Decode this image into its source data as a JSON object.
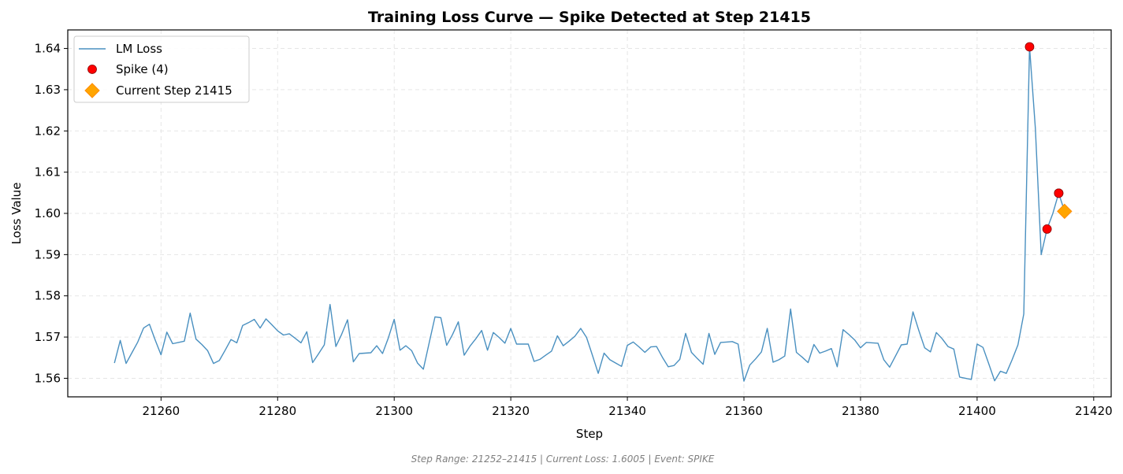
{
  "chart_data": {
    "type": "line",
    "title": "Training Loss Curve — Spike Detected at Step 21415",
    "xlabel": "Step",
    "ylabel": "Loss Value",
    "xlim": [
      21244,
      21423
    ],
    "ylim": [
      1.5555,
      1.6445
    ],
    "x_ticks": [
      21260,
      21280,
      21300,
      21320,
      21340,
      21360,
      21380,
      21400,
      21420
    ],
    "y_ticks": [
      1.56,
      1.57,
      1.58,
      1.59,
      1.6,
      1.61,
      1.62,
      1.63,
      1.64
    ],
    "x_tick_labels": [
      "21260",
      "21280",
      "21300",
      "21320",
      "21340",
      "21360",
      "21380",
      "21400",
      "21420"
    ],
    "y_tick_labels": [
      "1.56",
      "1.57",
      "1.58",
      "1.59",
      "1.60",
      "1.61",
      "1.62",
      "1.63",
      "1.64"
    ],
    "grid": true,
    "legend_position": "top-left",
    "series": [
      {
        "name": "LM Loss",
        "color": "#4a90c0",
        "x": [
          21252,
          21253,
          21254,
          21255,
          21256,
          21257,
          21258,
          21259,
          21260,
          21261,
          21262,
          21263,
          21264,
          21265,
          21266,
          21267,
          21268,
          21269,
          21270,
          21271,
          21272,
          21273,
          21274,
          21275,
          21276,
          21277,
          21278,
          21279,
          21280,
          21281,
          21282,
          21283,
          21284,
          21285,
          21286,
          21287,
          21288,
          21289,
          21290,
          21291,
          21292,
          21293,
          21294,
          21295,
          21296,
          21297,
          21298,
          21299,
          21300,
          21301,
          21302,
          21303,
          21304,
          21305,
          21306,
          21307,
          21308,
          21309,
          21310,
          21311,
          21312,
          21313,
          21314,
          21315,
          21316,
          21317,
          21318,
          21319,
          21320,
          21321,
          21322,
          21323,
          21324,
          21325,
          21326,
          21327,
          21328,
          21329,
          21330,
          21331,
          21332,
          21333,
          21334,
          21335,
          21336,
          21337,
          21338,
          21339,
          21340,
          21341,
          21342,
          21343,
          21344,
          21345,
          21346,
          21347,
          21348,
          21349,
          21350,
          21351,
          21352,
          21353,
          21354,
          21355,
          21356,
          21357,
          21358,
          21359,
          21360,
          21361,
          21362,
          21363,
          21364,
          21365,
          21366,
          21367,
          21368,
          21369,
          21370,
          21371,
          21372,
          21373,
          21374,
          21375,
          21376,
          21377,
          21378,
          21379,
          21380,
          21381,
          21382,
          21383,
          21384,
          21385,
          21386,
          21387,
          21388,
          21389,
          21390,
          21391,
          21392,
          21393,
          21394,
          21395,
          21396,
          21397,
          21398,
          21399,
          21400,
          21401,
          21402,
          21403,
          21404,
          21405,
          21406,
          21407,
          21408,
          21409,
          21410,
          21411,
          21412,
          21413,
          21414,
          21415
        ],
        "y": [
          1.5637,
          1.5692,
          1.5636,
          1.5662,
          1.5688,
          1.5722,
          1.5731,
          1.5693,
          1.5657,
          1.5712,
          1.5684,
          1.5687,
          1.569,
          1.5758,
          1.5695,
          1.5682,
          1.5667,
          1.5636,
          1.5643,
          1.5668,
          1.5694,
          1.5686,
          1.5728,
          1.5735,
          1.5743,
          1.5722,
          1.5744,
          1.573,
          1.5715,
          1.5705,
          1.5708,
          1.5697,
          1.5686,
          1.5713,
          1.5638,
          1.5659,
          1.5681,
          1.5779,
          1.5677,
          1.5707,
          1.5742,
          1.564,
          1.566,
          1.5661,
          1.5662,
          1.5679,
          1.566,
          1.5698,
          1.5743,
          1.5668,
          1.5679,
          1.5667,
          1.5637,
          1.5622,
          1.5686,
          1.5749,
          1.5747,
          1.568,
          1.5706,
          1.5737,
          1.5656,
          1.5678,
          1.5696,
          1.5716,
          1.5668,
          1.5711,
          1.5699,
          1.5685,
          1.5721,
          1.5683,
          1.5683,
          1.5683,
          1.5641,
          1.5646,
          1.5656,
          1.5666,
          1.5703,
          1.5679,
          1.569,
          1.5702,
          1.5721,
          1.5699,
          1.5656,
          1.5612,
          1.5661,
          1.5645,
          1.5637,
          1.5629,
          1.568,
          1.5688,
          1.5676,
          1.5663,
          1.5676,
          1.5677,
          1.5651,
          1.5628,
          1.5631,
          1.5646,
          1.5709,
          1.5663,
          1.5648,
          1.5634,
          1.5709,
          1.5658,
          1.5687,
          1.5688,
          1.5689,
          1.5683,
          1.5593,
          1.5632,
          1.5647,
          1.5664,
          1.5721,
          1.5639,
          1.5645,
          1.5654,
          1.5768,
          1.5663,
          1.5651,
          1.5638,
          1.5682,
          1.5661,
          1.5666,
          1.5672,
          1.5628,
          1.5718,
          1.5706,
          1.5693,
          1.5674,
          1.5687,
          1.5686,
          1.5685,
          1.5645,
          1.5627,
          1.5654,
          1.5681,
          1.5683,
          1.5761,
          1.5716,
          1.5674,
          1.5664,
          1.5711,
          1.5696,
          1.5677,
          1.5671,
          1.5603,
          1.56,
          1.5597,
          1.5683,
          1.5675,
          1.5635,
          1.5594,
          1.5617,
          1.5612,
          1.5645,
          1.5681,
          1.5756,
          1.6404,
          1.6206,
          1.59,
          1.5962,
          1.6,
          1.6049,
          1.6005
        ]
      }
    ],
    "spikes": {
      "name": "Spike (4)",
      "color": "#ff0000",
      "x": [
        21409,
        21412,
        21414,
        21414
      ],
      "y": [
        1.6404,
        1.5962,
        1.6049,
        1.6049
      ]
    },
    "current": {
      "name": "Current Step 21415",
      "color": "#ffa500",
      "x": 21415,
      "y": 1.6005
    }
  },
  "footer": "Step Range: 21252–21415 | Current Loss: 1.6005 | Event: SPIKE"
}
